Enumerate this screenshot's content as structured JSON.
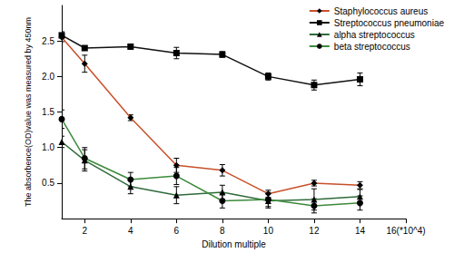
{
  "chart_data": {
    "type": "line",
    "x_label": "Dilution multiple",
    "y_label": "The absorbence(OD)value was measured by 450nm",
    "x": [
      1,
      2,
      4,
      6,
      8,
      10,
      12,
      14
    ],
    "xlim": [
      1,
      16
    ],
    "xticks": [
      2,
      4,
      6,
      8,
      10,
      12,
      14,
      {
        "value": 16,
        "label": "16(*10^4)"
      }
    ],
    "ylim": [
      0,
      3
    ],
    "yticks": [
      {
        "value": 0.5,
        "label": "0.5"
      },
      {
        "value": 1,
        "label": "1.0"
      },
      {
        "value": 1.5,
        "label": "1.5"
      },
      {
        "value": 2,
        "label": "2.0"
      },
      {
        "value": 2.5,
        "label": "2.5"
      }
    ],
    "grid": false,
    "legend": "upper right",
    "series": [
      {
        "name": "Staphylococcus aureus",
        "color": "#c8502a",
        "marker": "diamond",
        "values": [
          2.55,
          2.18,
          1.42,
          0.75,
          0.68,
          0.35,
          0.5,
          0.47
        ],
        "errors": [
          0.06,
          0.12,
          0.04,
          0.1,
          0.08,
          0.05,
          0.04,
          0.05
        ]
      },
      {
        "name": "Streptococcus pneumoniae",
        "color": "#111111",
        "marker": "square",
        "values": [
          2.58,
          2.4,
          2.42,
          2.33,
          2.31,
          2.0,
          1.88,
          1.96
        ],
        "errors": [
          0.05,
          0.03,
          0.03,
          0.08,
          0.04,
          0.05,
          0.07,
          0.09
        ]
      },
      {
        "name": "alpha streptococcus",
        "color": "#2e6b3a",
        "marker": "triangle",
        "values": [
          1.08,
          0.82,
          0.45,
          0.33,
          0.37,
          0.25,
          0.27,
          0.31
        ],
        "errors": [
          0.08,
          0.15,
          0.1,
          0.12,
          0.1,
          0.1,
          0.15,
          0.1
        ]
      },
      {
        "name": "beta streptococcus",
        "color": "#3c8a3c",
        "marker": "circle",
        "values": [
          1.4,
          0.85,
          0.55,
          0.6,
          0.25,
          0.27,
          0.18,
          0.22
        ],
        "errors": [
          0.13,
          0.15,
          0.1,
          0.12,
          0.1,
          0.1,
          0.1,
          0.1
        ]
      }
    ]
  }
}
